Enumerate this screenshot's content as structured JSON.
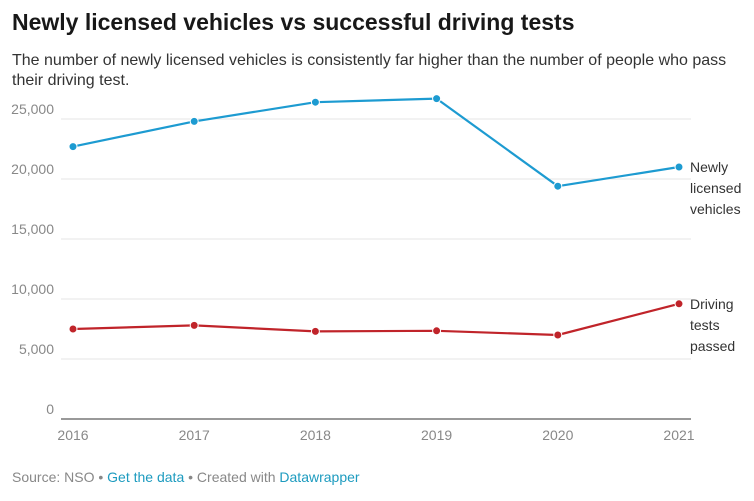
{
  "header": {
    "title": "Newly licensed vehicles vs successful driving tests",
    "subtitle": "The number of newly licensed vehicles is consistently far higher than the number of people who pass their driving test."
  },
  "chart_data": {
    "type": "line",
    "x": [
      "2016",
      "2017",
      "2018",
      "2019",
      "2020",
      "2021"
    ],
    "ylim": [
      0,
      27000
    ],
    "yticks": [
      0,
      5000,
      10000,
      15000,
      20000,
      25000
    ],
    "ytick_labels": [
      "0",
      "5,000",
      "10,000",
      "15,000",
      "20,000",
      "25,000"
    ],
    "grid": true,
    "series": [
      {
        "name": "Newly licensed vehicles",
        "label_lines": [
          "Newly",
          "licensed",
          "vehicles"
        ],
        "color": "#1d9bd1",
        "values": [
          22700,
          24800,
          26400,
          26700,
          19400,
          21000
        ]
      },
      {
        "name": "Driving tests passed",
        "label_lines": [
          "Driving",
          "tests",
          "passed"
        ],
        "color": "#c0242a",
        "values": [
          7500,
          7800,
          7300,
          7350,
          7000,
          9600
        ]
      }
    ]
  },
  "footer": {
    "source": "Source: NSO",
    "separator": "•",
    "data_link": "Get the data",
    "created_with": "Created with",
    "tool_link": "Datawrapper"
  }
}
